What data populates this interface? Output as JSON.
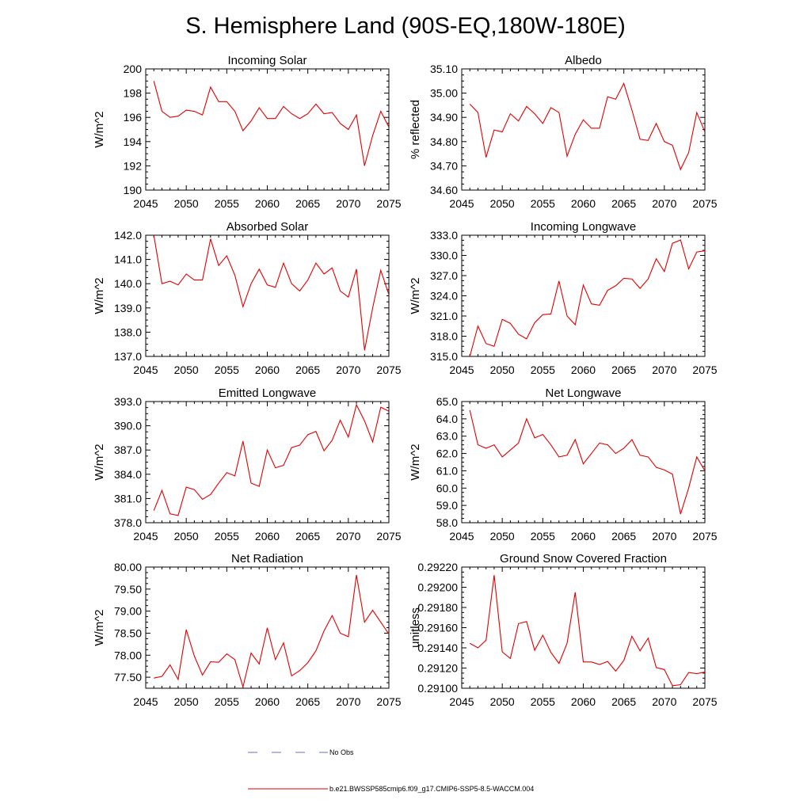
{
  "title": "S. Hemisphere Land (90S-EQ,180W-180E)",
  "legend": {
    "obs_label": "No Obs",
    "obs_color": "#6a6fc8",
    "model_label": "b.e21.BWSSP585cmip6.f09_g17.CMIP6-SSP5-8.5-WACCM.004",
    "model_color": "#e00000"
  },
  "chart_data": [
    {
      "type": "line",
      "title": "Incoming Solar",
      "ylabel": "W/m^2",
      "xlim": [
        2045,
        2075
      ],
      "ylim": [
        190,
        200
      ],
      "xticks": [
        "2045",
        "2050",
        "2055",
        "2060",
        "2065",
        "2070",
        "2075"
      ],
      "yticks": [
        "190",
        "192",
        "194",
        "196",
        "198",
        "200"
      ],
      "x": [
        2046,
        2047,
        2048,
        2049,
        2050,
        2051,
        2052,
        2053,
        2054,
        2055,
        2056,
        2057,
        2058,
        2059,
        2060,
        2061,
        2062,
        2063,
        2064,
        2065,
        2066,
        2067,
        2068,
        2069,
        2070,
        2071,
        2072,
        2073,
        2074,
        2075
      ],
      "values": [
        199.0,
        196.5,
        196.0,
        196.1,
        196.6,
        196.5,
        196.2,
        198.5,
        197.3,
        197.3,
        196.5,
        194.9,
        195.7,
        196.8,
        195.9,
        195.9,
        196.9,
        196.3,
        195.9,
        196.3,
        197.1,
        196.3,
        196.4,
        195.5,
        195.0,
        196.2,
        192.0,
        194.5,
        196.5,
        195.2
      ]
    },
    {
      "type": "line",
      "title": "Albedo",
      "ylabel": "% reflected",
      "xlim": [
        2045,
        2075
      ],
      "ylim": [
        34.6,
        35.1
      ],
      "xticks": [
        "2045",
        "2050",
        "2055",
        "2060",
        "2065",
        "2070",
        "2075"
      ],
      "yticks": [
        "34.60",
        "34.70",
        "34.80",
        "34.90",
        "35.00",
        "35.10"
      ],
      "x": [
        2046,
        2047,
        2048,
        2049,
        2050,
        2051,
        2052,
        2053,
        2054,
        2055,
        2056,
        2057,
        2058,
        2059,
        2060,
        2061,
        2062,
        2063,
        2064,
        2065,
        2066,
        2067,
        2068,
        2069,
        2070,
        2071,
        2072,
        2073,
        2074,
        2075
      ],
      "values": [
        34.955,
        34.92,
        34.735,
        34.848,
        34.84,
        34.915,
        34.885,
        34.945,
        34.915,
        34.875,
        34.94,
        34.92,
        34.74,
        34.83,
        34.89,
        34.855,
        34.855,
        34.985,
        34.975,
        35.04,
        34.93,
        34.81,
        34.805,
        34.875,
        34.8,
        34.785,
        34.685,
        34.755,
        34.92,
        34.84
      ]
    },
    {
      "type": "line",
      "title": "Absorbed Solar",
      "ylabel": "W/m^2",
      "xlim": [
        2045,
        2075
      ],
      "ylim": [
        137.0,
        142.0
      ],
      "xticks": [
        "2045",
        "2050",
        "2055",
        "2060",
        "2065",
        "2070",
        "2075"
      ],
      "yticks": [
        "137.0",
        "138.0",
        "139.0",
        "140.0",
        "141.0",
        "142.0"
      ],
      "x": [
        2046,
        2047,
        2048,
        2049,
        2050,
        2051,
        2052,
        2053,
        2054,
        2055,
        2056,
        2057,
        2058,
        2059,
        2060,
        2061,
        2062,
        2063,
        2064,
        2065,
        2066,
        2067,
        2068,
        2069,
        2070,
        2071,
        2072,
        2073,
        2074,
        2075
      ],
      "values": [
        142.0,
        140.0,
        140.1,
        139.95,
        140.4,
        140.15,
        140.15,
        141.85,
        140.75,
        141.15,
        140.35,
        139.05,
        140.0,
        140.6,
        139.95,
        139.85,
        140.85,
        140.0,
        139.7,
        140.15,
        140.85,
        140.4,
        140.65,
        139.7,
        139.45,
        140.6,
        137.25,
        139.0,
        140.55,
        139.55
      ]
    },
    {
      "type": "line",
      "title": "Incoming Longwave",
      "ylabel": "W/m^2",
      "xlim": [
        2045,
        2075
      ],
      "ylim": [
        315.0,
        333.0
      ],
      "xticks": [
        "2045",
        "2050",
        "2055",
        "2060",
        "2065",
        "2070",
        "2075"
      ],
      "yticks": [
        "315.0",
        "318.0",
        "321.0",
        "324.0",
        "327.0",
        "330.0",
        "333.0"
      ],
      "x": [
        2046,
        2047,
        2048,
        2049,
        2050,
        2051,
        2052,
        2053,
        2054,
        2055,
        2056,
        2057,
        2058,
        2059,
        2060,
        2061,
        2062,
        2063,
        2064,
        2065,
        2066,
        2067,
        2068,
        2069,
        2070,
        2071,
        2072,
        2073,
        2074,
        2075
      ],
      "values": [
        315.0,
        319.5,
        316.9,
        316.5,
        320.5,
        319.9,
        318.3,
        317.6,
        320.0,
        321.2,
        321.3,
        326.2,
        321.0,
        319.7,
        325.6,
        322.8,
        322.6,
        324.8,
        325.5,
        326.6,
        326.5,
        325.1,
        326.5,
        329.5,
        327.6,
        331.8,
        332.3,
        328.0,
        330.5,
        330.7
      ]
    },
    {
      "type": "line",
      "title": "Emitted Longwave",
      "ylabel": "W/m^2",
      "xlim": [
        2045,
        2075
      ],
      "ylim": [
        378.0,
        393.0
      ],
      "xticks": [
        "2045",
        "2050",
        "2055",
        "2060",
        "2065",
        "2070",
        "2075"
      ],
      "yticks": [
        "378.0",
        "381.0",
        "384.0",
        "387.0",
        "390.0",
        "393.0"
      ],
      "x": [
        2046,
        2047,
        2048,
        2049,
        2050,
        2051,
        2052,
        2053,
        2054,
        2055,
        2056,
        2057,
        2058,
        2059,
        2060,
        2061,
        2062,
        2063,
        2064,
        2065,
        2066,
        2067,
        2068,
        2069,
        2070,
        2071,
        2072,
        2073,
        2074,
        2075
      ],
      "values": [
        379.5,
        382.0,
        379.1,
        378.9,
        382.4,
        382.1,
        380.9,
        381.5,
        382.9,
        384.2,
        383.8,
        388.1,
        382.9,
        382.5,
        387.0,
        384.8,
        385.1,
        387.3,
        387.6,
        388.9,
        389.3,
        386.9,
        388.2,
        390.7,
        388.6,
        392.6,
        390.6,
        388.0,
        392.3,
        391.8
      ]
    },
    {
      "type": "line",
      "title": "Net Longwave",
      "ylabel": "W/m^2",
      "xlim": [
        2045,
        2075
      ],
      "ylim": [
        58.0,
        65.0
      ],
      "xticks": [
        "2045",
        "2050",
        "2055",
        "2060",
        "2065",
        "2070",
        "2075"
      ],
      "yticks": [
        "58.0",
        "59.0",
        "60.0",
        "61.0",
        "62.0",
        "63.0",
        "64.0",
        "65.0"
      ],
      "x": [
        2046,
        2047,
        2048,
        2049,
        2050,
        2051,
        2052,
        2053,
        2054,
        2055,
        2056,
        2057,
        2058,
        2059,
        2060,
        2061,
        2062,
        2063,
        2064,
        2065,
        2066,
        2067,
        2068,
        2069,
        2070,
        2071,
        2072,
        2073,
        2074,
        2075
      ],
      "values": [
        64.5,
        62.5,
        62.3,
        62.5,
        61.8,
        62.2,
        62.6,
        64.0,
        62.9,
        63.1,
        62.5,
        61.8,
        61.9,
        62.8,
        61.4,
        62.0,
        62.6,
        62.5,
        62.0,
        62.3,
        62.8,
        61.9,
        61.8,
        61.2,
        61.05,
        60.8,
        58.5,
        60.0,
        61.8,
        61.0
      ]
    },
    {
      "type": "line",
      "title": "Net Radiation",
      "ylabel": "W/m^2",
      "xlim": [
        2045,
        2075
      ],
      "ylim": [
        77.25,
        80.0
      ],
      "xticks": [
        "2045",
        "2050",
        "2055",
        "2060",
        "2065",
        "2070",
        "2075"
      ],
      "yticks": [
        "77.50",
        "78.00",
        "78.50",
        "79.00",
        "79.50",
        "80.00"
      ],
      "x": [
        2046,
        2047,
        2048,
        2049,
        2050,
        2051,
        2052,
        2053,
        2054,
        2055,
        2056,
        2057,
        2058,
        2059,
        2060,
        2061,
        2062,
        2063,
        2064,
        2065,
        2066,
        2067,
        2068,
        2069,
        2070,
        2071,
        2072,
        2073,
        2074,
        2075
      ],
      "values": [
        77.48,
        77.52,
        77.78,
        77.45,
        78.58,
        77.98,
        77.55,
        77.85,
        77.84,
        78.03,
        77.9,
        77.28,
        78.05,
        77.8,
        78.62,
        77.9,
        78.28,
        77.53,
        77.65,
        77.83,
        78.1,
        78.55,
        78.9,
        78.5,
        78.42,
        79.82,
        78.75,
        79.02,
        78.75,
        78.48
      ]
    },
    {
      "type": "line",
      "title": "Ground Snow Covered Fraction",
      "ylabel": "unitless",
      "xlim": [
        2045,
        2075
      ],
      "ylim": [
        0.291,
        0.2922
      ],
      "xticks": [
        "2045",
        "2050",
        "2055",
        "2060",
        "2065",
        "2070",
        "2075"
      ],
      "yticks": [
        "0.29100",
        "0.29120",
        "0.29140",
        "0.29160",
        "0.29180",
        "0.29200",
        "0.29220"
      ],
      "x": [
        2046,
        2047,
        2048,
        2049,
        2050,
        2051,
        2052,
        2053,
        2054,
        2055,
        2056,
        2057,
        2058,
        2059,
        2060,
        2061,
        2062,
        2063,
        2064,
        2065,
        2066,
        2067,
        2068,
        2069,
        2070,
        2071,
        2072,
        2073,
        2074,
        2075
      ],
      "values": [
        0.291445,
        0.2914,
        0.291475,
        0.29212,
        0.29136,
        0.291295,
        0.29164,
        0.29166,
        0.291375,
        0.291525,
        0.291355,
        0.291245,
        0.291445,
        0.29195,
        0.29126,
        0.29126,
        0.291235,
        0.291265,
        0.29117,
        0.291275,
        0.291515,
        0.29137,
        0.291495,
        0.291205,
        0.291185,
        0.291025,
        0.291035,
        0.291155,
        0.291145,
        0.29116
      ]
    }
  ]
}
